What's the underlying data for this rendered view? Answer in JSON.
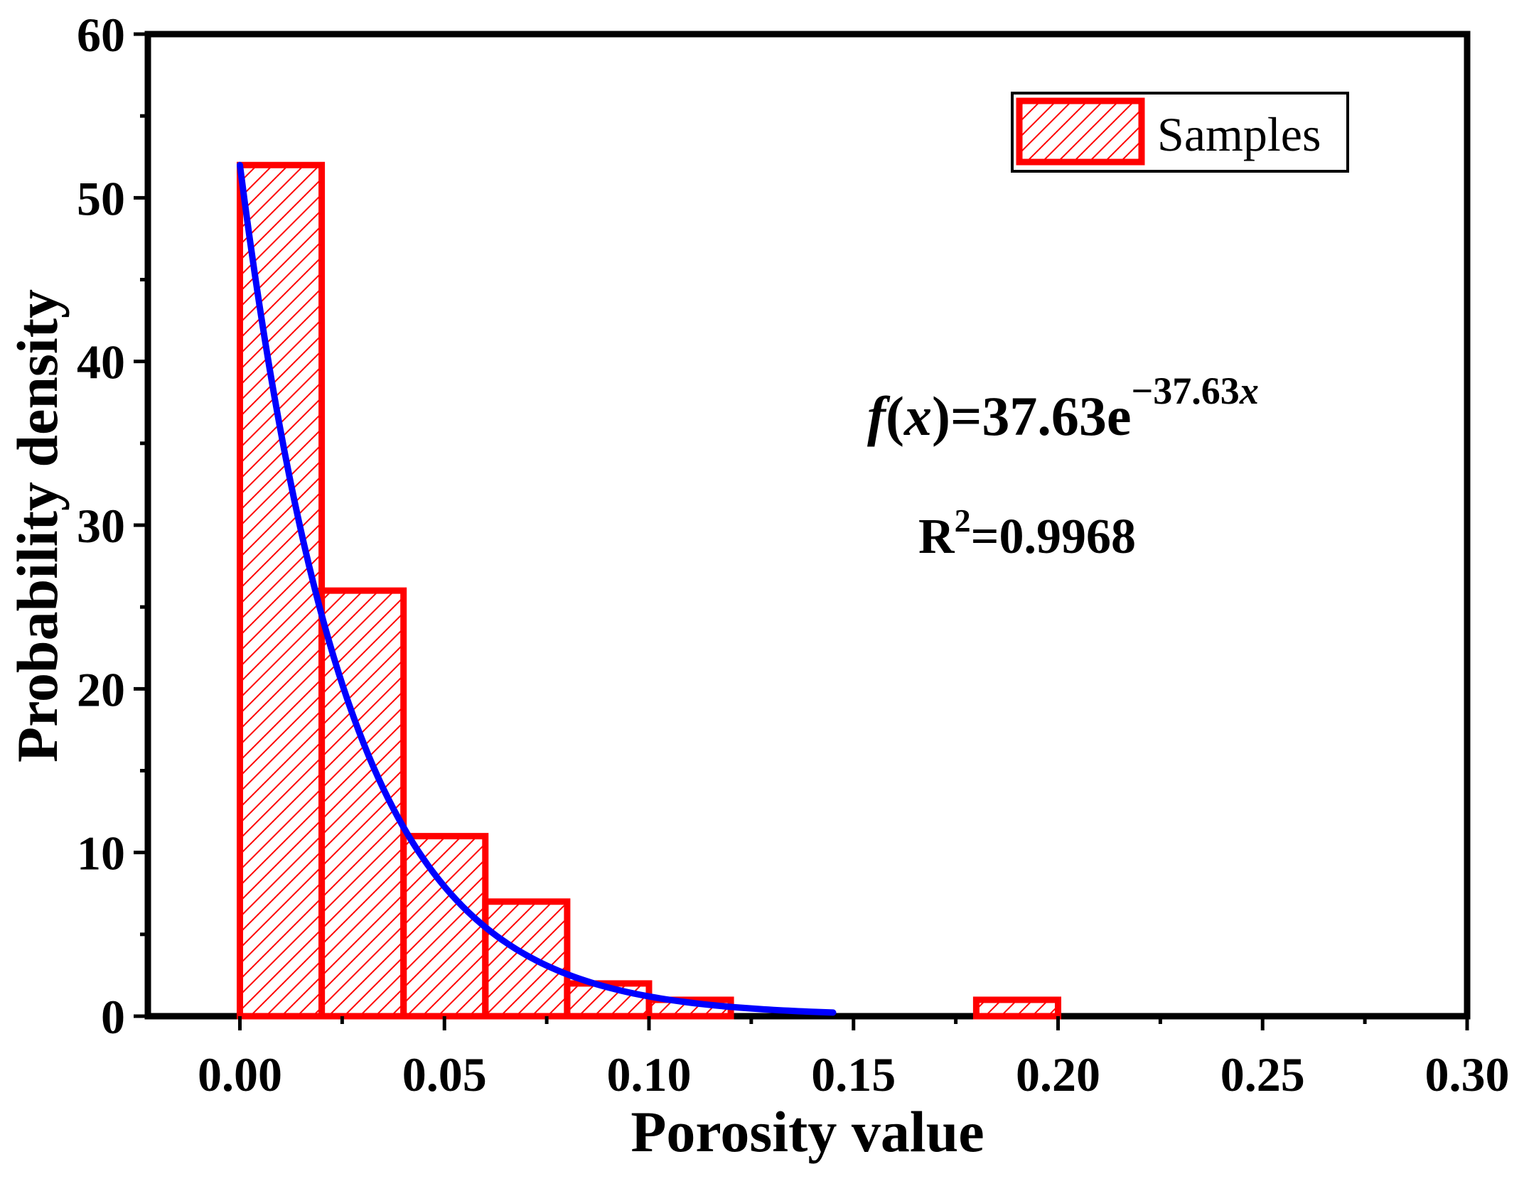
{
  "chart_data": {
    "type": "bar",
    "title": "",
    "xlabel": "Porosity value",
    "ylabel": "Probability density",
    "xlim": [
      -0.0225,
      0.3
    ],
    "ylim": [
      0,
      60
    ],
    "x_ticks": [
      0.0,
      0.05,
      0.1,
      0.15,
      0.2,
      0.25,
      0.3
    ],
    "x_tick_labels": [
      "0.00",
      "0.05",
      "0.10",
      "0.15",
      "0.20",
      "0.25",
      "0.30"
    ],
    "y_ticks": [
      0,
      10,
      20,
      30,
      40,
      50,
      60
    ],
    "y_tick_labels": [
      "0",
      "10",
      "20",
      "30",
      "40",
      "50",
      "60"
    ],
    "bins": [
      {
        "start": 0.0,
        "end": 0.02,
        "value": 52
      },
      {
        "start": 0.02,
        "end": 0.04,
        "value": 26
      },
      {
        "start": 0.04,
        "end": 0.06,
        "value": 11
      },
      {
        "start": 0.06,
        "end": 0.08,
        "value": 7
      },
      {
        "start": 0.08,
        "end": 0.1,
        "value": 2
      },
      {
        "start": 0.1,
        "end": 0.12,
        "value": 1
      },
      {
        "start": 0.18,
        "end": 0.2,
        "value": 1
      }
    ],
    "fit": {
      "amplitude": 37.63,
      "rate": 37.63,
      "x_range": [
        0.0,
        0.145
      ],
      "scale_shown": 52
    },
    "legend": {
      "label": "Samples",
      "position": "top-right"
    },
    "annotations": {
      "equation_prefix": "f",
      "equation_open": "(",
      "equation_var": "x",
      "equation_close": ")",
      "equation_main": "=37.63e",
      "equation_sup": "−37.63",
      "equation_sup_var": "x",
      "r2_label": "R",
      "r2_sup": "2",
      "r2_value": "=0.9968"
    },
    "colors": {
      "bars": "#ff0000",
      "fit": "#0000ff",
      "axes": "#000000"
    }
  }
}
